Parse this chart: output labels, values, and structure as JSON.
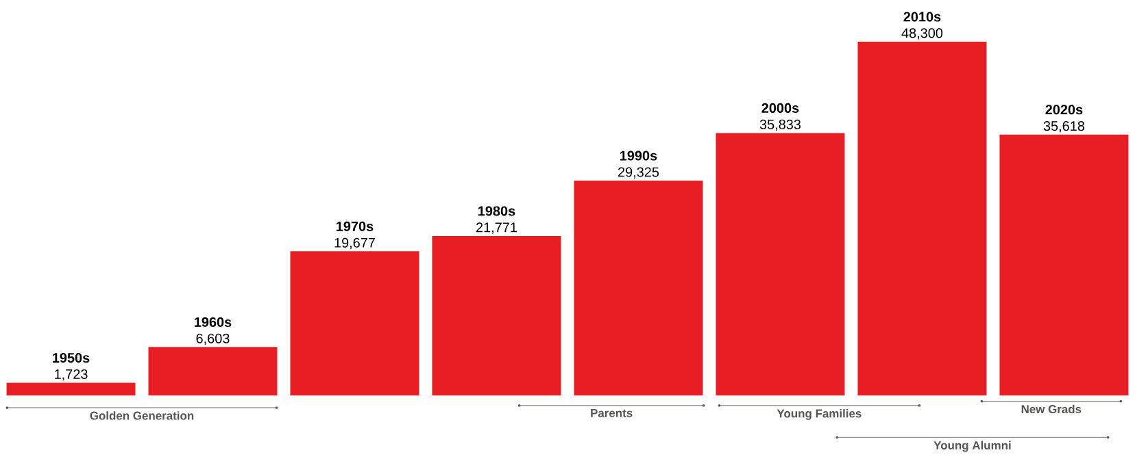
{
  "chart_data": {
    "type": "bar",
    "categories": [
      "1950s",
      "1960s",
      "1970s",
      "1980s",
      "1990s",
      "2000s",
      "2010s",
      "2020s"
    ],
    "values": [
      1723,
      6603,
      19677,
      21771,
      29325,
      35833,
      48300,
      35618
    ],
    "value_labels": [
      "1,723",
      "6,603",
      "19,677",
      "21,771",
      "29,325",
      "35,833",
      "48,300",
      "35,618"
    ],
    "color": "#e81e25",
    "annotations": [
      "Golden Generation",
      "Parents",
      "Young Families",
      "New Grads",
      "Young Alumni"
    ]
  }
}
